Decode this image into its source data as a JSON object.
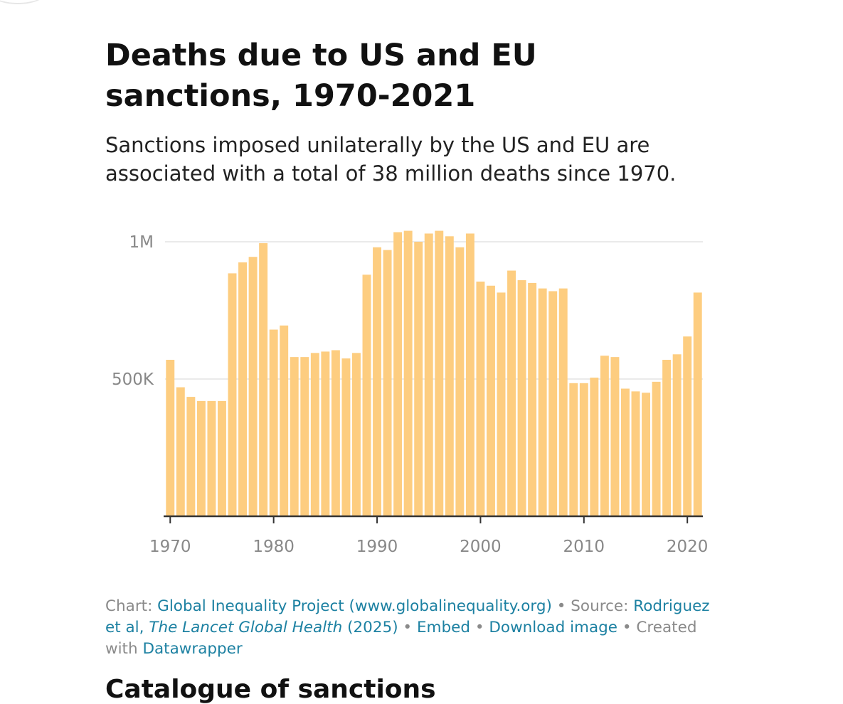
{
  "title": "Deaths due to US and EU sanctions, 1970-2021",
  "subtitle": "Sanctions imposed unilaterally by the US and EU are associated with a total of 38 million deaths since 1970.",
  "footer": {
    "chart_prefix": "Chart: ",
    "chart_link": "Global Inequality Project (www.globalinequality.org)",
    "source_prefix": " • Source: ",
    "source_link_a": "Rodriguez et al, ",
    "source_link_italic": "The Lancet Global Health",
    "source_link_b": " (2025)",
    "sep1": " • ",
    "embed": "Embed",
    "sep2": "  • ",
    "download": "Download image",
    "created_prefix": " • Created with ",
    "datawrapper": "Datawrapper"
  },
  "next_heading": "Catalogue of sanctions",
  "colors": {
    "bar": "#fdcd80",
    "grid": "#e3e3e3",
    "axis": "#333333",
    "tick_label": "#888888",
    "link": "#1d81a2"
  },
  "chart_data": {
    "type": "bar",
    "title": "Deaths due to US and EU sanctions, 1970-2021",
    "x": [
      1970,
      1971,
      1972,
      1973,
      1974,
      1975,
      1976,
      1977,
      1978,
      1979,
      1980,
      1981,
      1982,
      1983,
      1984,
      1985,
      1986,
      1987,
      1988,
      1989,
      1990,
      1991,
      1992,
      1993,
      1994,
      1995,
      1996,
      1997,
      1998,
      1999,
      2000,
      2001,
      2002,
      2003,
      2004,
      2005,
      2006,
      2007,
      2008,
      2009,
      2010,
      2011,
      2012,
      2013,
      2014,
      2015,
      2016,
      2017,
      2018,
      2019,
      2020,
      2021
    ],
    "values": [
      570000,
      470000,
      435000,
      420000,
      420000,
      420000,
      885000,
      925000,
      945000,
      995000,
      680000,
      695000,
      580000,
      580000,
      595000,
      600000,
      605000,
      575000,
      595000,
      880000,
      980000,
      970000,
      1035000,
      1040000,
      1000000,
      1030000,
      1040000,
      1020000,
      980000,
      1030000,
      855000,
      840000,
      815000,
      895000,
      860000,
      850000,
      830000,
      820000,
      830000,
      485000,
      485000,
      505000,
      585000,
      580000,
      465000,
      455000,
      450000,
      490000,
      570000,
      590000,
      655000,
      815000
    ],
    "x_ticks": [
      1970,
      1980,
      1990,
      2000,
      2010,
      2020
    ],
    "x_tick_labels": [
      "1970",
      "1980",
      "1990",
      "2000",
      "2010",
      "2020"
    ],
    "y_ticks": [
      500000,
      1000000
    ],
    "y_tick_labels": [
      "500K",
      "1M"
    ],
    "ylim": [
      0,
      1000000
    ],
    "xlabel": "",
    "ylabel": ""
  }
}
